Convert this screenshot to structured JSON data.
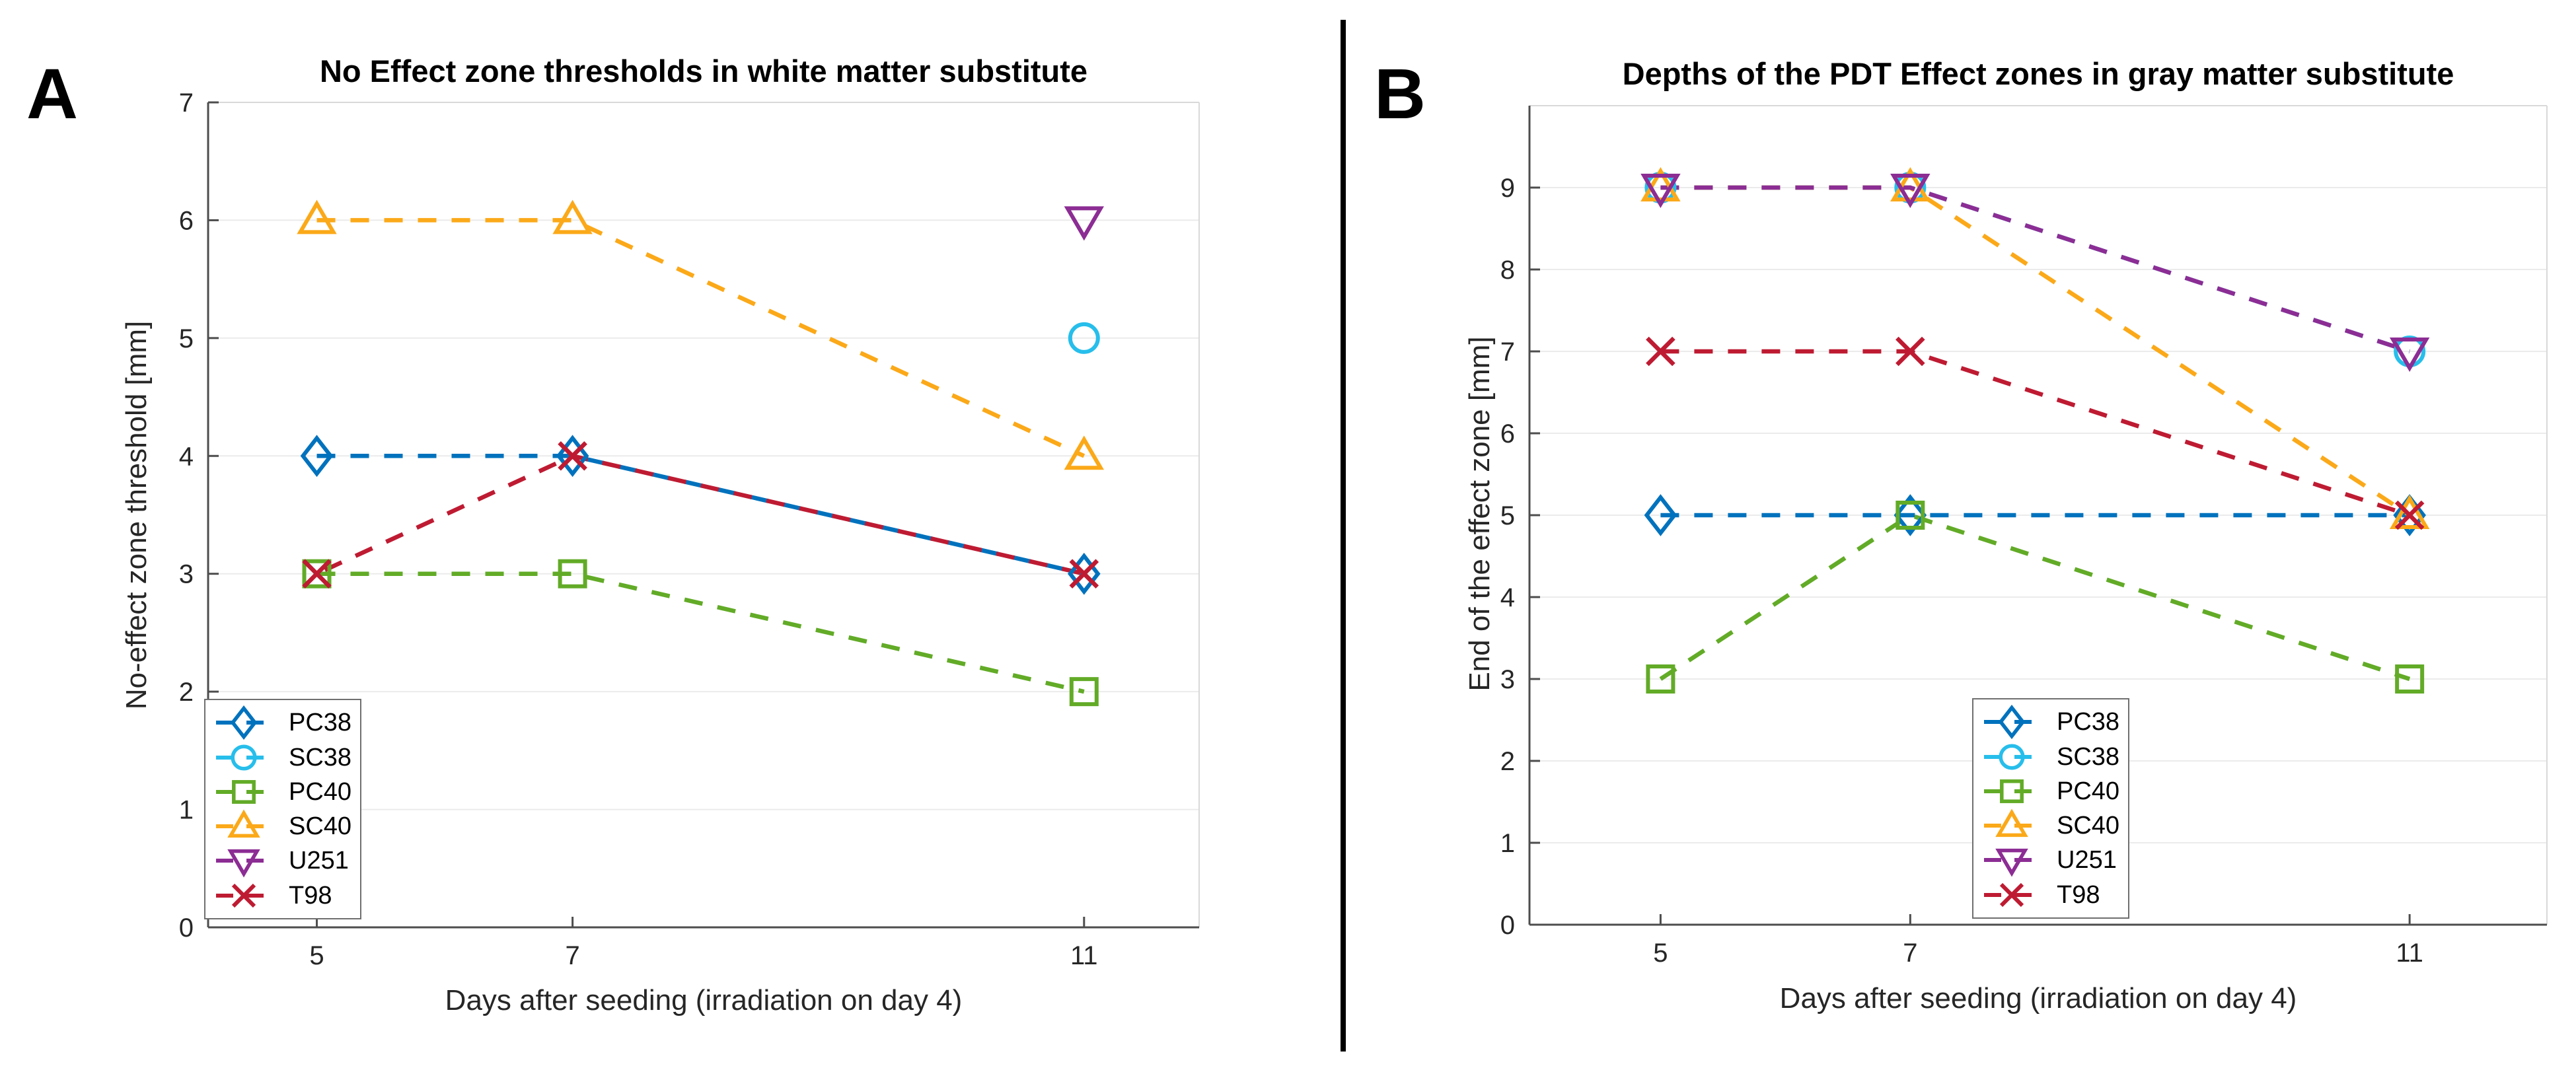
{
  "figure": {
    "panel_divider_color": "#000000",
    "background": "#ffffff"
  },
  "chart_data": [
    {
      "type": "line",
      "panel_label": "A",
      "title": "No Effect zone thresholds in white matter substitute",
      "xlabel": "Days after seeding (irradiation on day 4)",
      "ylabel": "No-effect zone threshold [mm]",
      "xlim": [
        4.15,
        11.9
      ],
      "ylim": [
        0,
        7
      ],
      "xticks": [
        5,
        7,
        11
      ],
      "yticks": [
        0,
        1,
        2,
        3,
        4,
        5,
        6,
        7
      ],
      "grid": "horizontal",
      "legend_position": "lower-left",
      "series": [
        {
          "name": "PC38",
          "color": "#0072BD",
          "marker": "diamond",
          "line": "dashed",
          "x": [
            5,
            7,
            11
          ],
          "y": [
            4,
            4,
            3
          ]
        },
        {
          "name": "SC38",
          "color": "#27BEEB",
          "marker": "circle",
          "line": "none",
          "x": [
            11
          ],
          "y": [
            5
          ]
        },
        {
          "name": "PC40",
          "color": "#62AB27",
          "marker": "square",
          "line": "dashed",
          "x": [
            5,
            7,
            11
          ],
          "y": [
            3,
            3,
            2
          ]
        },
        {
          "name": "SC40",
          "color": "#FBA919",
          "marker": "triangle-up",
          "line": "dashed",
          "x": [
            5,
            7,
            11
          ],
          "y": [
            6,
            6,
            4
          ]
        },
        {
          "name": "U251",
          "color": "#8C2D94",
          "marker": "triangle-down",
          "line": "none",
          "x": [
            11
          ],
          "y": [
            6
          ]
        },
        {
          "name": "T98",
          "color": "#BE1B32",
          "marker": "x",
          "line": "dashed",
          "x": [
            5,
            7,
            11
          ],
          "y": [
            3,
            4,
            3
          ],
          "dash_phase": 37.5
        }
      ]
    },
    {
      "type": "line",
      "panel_label": "B",
      "title": "Depths of the PDT Effect zones in gray matter substitute",
      "xlabel": "Days after seeding (irradiation on day 4)",
      "ylabel": "End of the effect zone [mm]",
      "xlim": [
        3.95,
        12.1
      ],
      "ylim": [
        0,
        10
      ],
      "xticks": [
        5,
        7,
        11
      ],
      "yticks": [
        0,
        1,
        2,
        3,
        4,
        5,
        6,
        7,
        8,
        9
      ],
      "grid": "horizontal",
      "legend_position": "lower-center",
      "series": [
        {
          "name": "PC38",
          "color": "#0072BD",
          "marker": "diamond",
          "line": "dashed",
          "x": [
            5,
            7,
            11
          ],
          "y": [
            5,
            5,
            5
          ]
        },
        {
          "name": "SC38",
          "color": "#27BEEB",
          "marker": "circle",
          "line": "dashed",
          "x": [
            5,
            7,
            11
          ],
          "y": [
            9,
            9,
            7
          ]
        },
        {
          "name": "PC40",
          "color": "#62AB27",
          "marker": "square",
          "line": "dashed",
          "x": [
            5,
            7,
            11
          ],
          "y": [
            3,
            5,
            3
          ]
        },
        {
          "name": "SC40",
          "color": "#FBA919",
          "marker": "triangle-up",
          "line": "dashed",
          "x": [
            5,
            7,
            11
          ],
          "y": [
            9,
            9,
            5
          ]
        },
        {
          "name": "U251",
          "color": "#8C2D94",
          "marker": "triangle-down",
          "line": "dashed",
          "x": [
            5,
            7,
            11
          ],
          "y": [
            9,
            9,
            7
          ]
        },
        {
          "name": "T98",
          "color": "#BE1B32",
          "marker": "x",
          "line": "dashed",
          "x": [
            5,
            7,
            11
          ],
          "y": [
            7,
            7,
            5
          ]
        }
      ]
    }
  ]
}
